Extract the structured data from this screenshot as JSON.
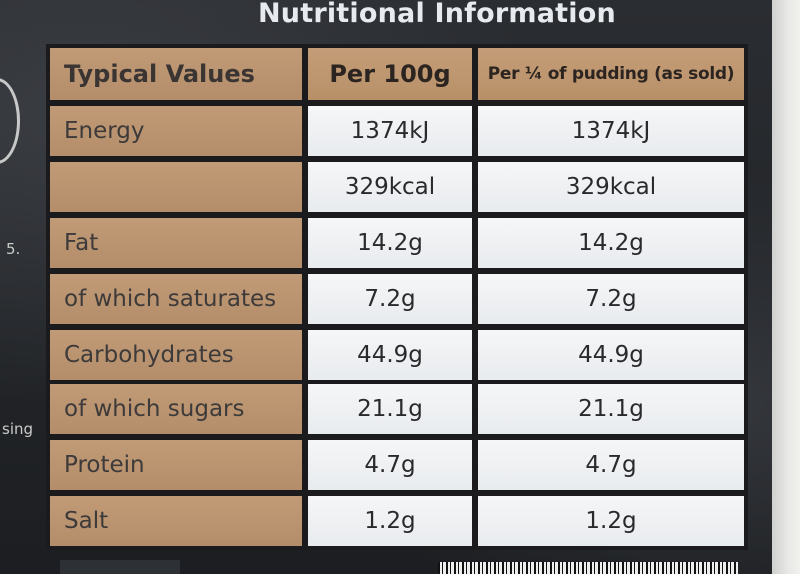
{
  "heading": "Nutritional Information",
  "side_texts": [
    "5.",
    "sing"
  ],
  "table": {
    "headers": [
      "Typical Values",
      "Per 100g",
      "Per ¼ of pudding (as sold)"
    ],
    "rows": [
      {
        "label": "Energy",
        "per100": "1374kJ",
        "perquarter": "1374kJ"
      },
      {
        "label": "",
        "per100": "329kcal",
        "perquarter": "329kcal"
      },
      {
        "label": "Fat",
        "per100": "14.2g",
        "perquarter": "14.2g"
      },
      {
        "label": "of which saturates",
        "per100": "7.2g",
        "perquarter": "7.2g"
      },
      {
        "label": "Carbohydrates",
        "per100": "44.9g",
        "perquarter": "44.9g"
      },
      {
        "label": "of which sugars",
        "per100": "21.1g",
        "perquarter": "21.1g"
      },
      {
        "label": "Protein",
        "per100": "4.7g",
        "perquarter": "4.7g"
      },
      {
        "label": "Salt",
        "per100": "1.2g",
        "perquarter": "1.2g"
      }
    ]
  }
}
